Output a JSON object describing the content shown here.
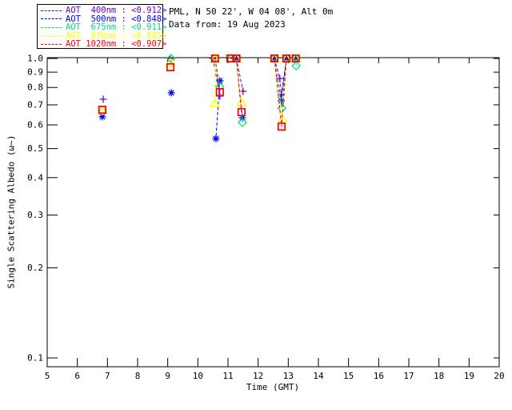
{
  "header": {
    "title": "PML, N 50 22', W 04 08', Alt 0m",
    "subtitle": "Data from: 19 Aug 2023"
  },
  "chart_data": {
    "type": "line",
    "title": "PML, N 50 22', W 04 08', Alt 0m",
    "subtitle": "Data from: 19 Aug 2023",
    "x_axis": {
      "label": "Time (GMT)",
      "range": [
        5,
        20
      ],
      "ticks": [
        5,
        6,
        7,
        8,
        9,
        10,
        11,
        12,
        13,
        14,
        15,
        16,
        17,
        18,
        19,
        20
      ],
      "tick_labels": [
        "5",
        "6",
        "7",
        "8",
        "9",
        "10",
        "11",
        "12",
        "13",
        "14",
        "15",
        "16",
        "17",
        "18",
        "19",
        "20"
      ]
    },
    "y_axis": {
      "label": "Single Scattering Albedo (ω~)",
      "scale": "log",
      "ticks": [
        1.0,
        0.9,
        0.8,
        0.7,
        0.6,
        0.5,
        0.4,
        0.3,
        0.2,
        0.1
      ],
      "tick_labels": [
        "1.0",
        "0.9",
        "0.8",
        "0.7",
        "0.6",
        "0.5",
        "0.4",
        "0.3",
        "0.2",
        "0.1"
      ]
    },
    "legend_position": "top-left",
    "grid": false,
    "line_style": "dashed",
    "series": [
      {
        "id": "400nm",
        "legend_label": "AOT  400nm : <0.912>",
        "wavelength_nm": 400,
        "mean_value": "<0.912>",
        "color": "#6600CC",
        "marker": "plus",
        "segments": [
          [
            [
              6.86,
              0.731
            ]
          ],
          [
            [
              9.08,
              1.0
            ]
          ],
          [
            [
              10.5,
              1.0
            ],
            [
              10.73,
              0.749
            ]
          ],
          [
            [
              11.28,
              1.0
            ],
            [
              11.5,
              0.777
            ]
          ],
          [
            [
              12.54,
              1.0
            ],
            [
              12.72,
              0.857
            ],
            [
              12.77,
              0.758
            ],
            [
              12.94,
              1.0
            ]
          ]
        ]
      },
      {
        "id": "500nm",
        "legend_label": "AOT  500nm : <0.848>",
        "wavelength_nm": 500,
        "mean_value": "<0.848>",
        "color": "#0000FF",
        "marker": "asterisk",
        "segments": [
          [
            [
              6.83,
              0.639
            ]
          ],
          [
            [
              9.12,
              0.768
            ]
          ],
          [
            [
              10.73,
              0.842
            ],
            [
              10.6,
              0.54
            ]
          ],
          [
            [
              11.28,
              1.0
            ],
            [
              11.48,
              0.634
            ]
          ],
          [
            [
              12.54,
              1.0
            ],
            [
              12.77,
              0.722
            ],
            [
              12.94,
              1.0
            ]
          ],
          [
            [
              13.25,
              1.0
            ]
          ]
        ]
      },
      {
        "id": "675nm",
        "legend_label": "AOT  675nm : <0.911>",
        "wavelength_nm": 675,
        "mean_value": "<0.911>",
        "color": "#00DC78",
        "marker": "diamond",
        "segments": [
          [
            [
              6.83,
              0.668
            ]
          ],
          [
            [
              9.11,
              1.0
            ]
          ],
          [
            [
              10.57,
              1.0
            ],
            [
              10.73,
              0.806
            ]
          ],
          [
            [
              11.08,
              1.0
            ],
            [
              11.28,
              1.0
            ],
            [
              11.48,
              0.611
            ]
          ],
          [
            [
              12.54,
              1.0
            ],
            [
              12.79,
              0.682
            ],
            [
              12.94,
              1.0
            ]
          ],
          [
            [
              13.25,
              1.0
            ],
            [
              13.26,
              0.946
            ]
          ]
        ]
      },
      {
        "id": "870nm",
        "legend_label": "AOT  870nm : <0.895>",
        "wavelength_nm": 870,
        "mean_value": "<0.895>",
        "color": "#FFFF00",
        "marker": "triangle",
        "segments": [
          [
            [
              6.83,
              0.671
            ]
          ],
          [
            [
              9.09,
              0.97
            ]
          ],
          [
            [
              10.57,
              1.0
            ],
            [
              10.56,
              0.709
            ]
          ],
          [
            [
              11.28,
              1.0
            ],
            [
              11.45,
              0.713
            ]
          ],
          [
            [
              12.54,
              1.0
            ],
            [
              12.8,
              0.626
            ],
            [
              12.94,
              1.0
            ]
          ],
          [
            [
              13.25,
              1.0
            ]
          ]
        ]
      },
      {
        "id": "1020nm",
        "legend_label": "AOT 1020nm : <0.907>",
        "wavelength_nm": 1020,
        "mean_value": "<0.907>",
        "color": "#FF0000",
        "marker": "square",
        "segments": [
          [
            [
              6.83,
              0.674
            ]
          ],
          [
            [
              9.09,
              0.935
            ]
          ],
          [
            [
              10.57,
              1.0
            ],
            [
              10.73,
              0.772
            ]
          ],
          [
            [
              11.08,
              1.0
            ],
            [
              11.28,
              1.0
            ],
            [
              11.45,
              0.662
            ]
          ],
          [
            [
              12.54,
              1.0
            ],
            [
              12.78,
              0.592
            ],
            [
              12.94,
              1.0
            ]
          ],
          [
            [
              13.25,
              1.0
            ]
          ]
        ]
      }
    ]
  }
}
